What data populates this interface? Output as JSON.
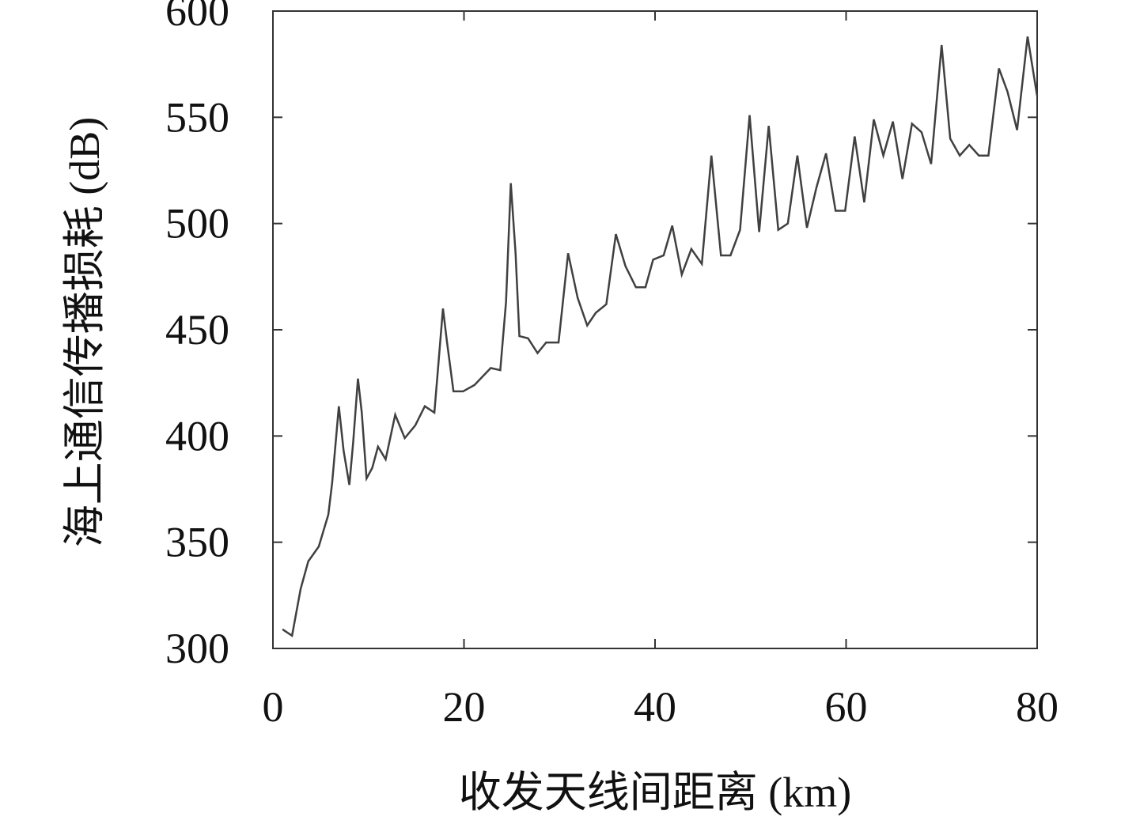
{
  "chart_data": {
    "type": "line",
    "xlabel": "收发天线间距离 (km)",
    "ylabel": "海上通信传播损耗 (dB)",
    "xlim": [
      0,
      80
    ],
    "xticks": [
      0,
      20,
      40,
      60,
      80
    ],
    "ylim": [
      300,
      600
    ],
    "yticks": [
      300,
      350,
      400,
      450,
      500,
      550,
      600
    ],
    "series": [
      {
        "color": "#404040",
        "x": [
          1,
          2,
          2.9,
          3.7,
          4.8,
          5.8,
          6.2,
          6.9,
          7.4,
          8,
          8.4,
          8.9,
          9.3,
          9.8,
          10.4,
          11,
          11.8,
          12.8,
          13.8,
          14.9,
          15.9,
          16.9,
          17.8,
          18.2,
          18.9,
          19.9,
          21.1,
          22.8,
          23.8,
          24.4,
          24.9,
          25.4,
          25.8,
          26.7,
          27.7,
          28.6,
          29.9,
          30.9,
          31.9,
          32.9,
          33.8,
          34.9,
          35.9,
          36.9,
          38,
          39,
          39.8,
          40.9,
          41.8,
          42.8,
          43.8,
          44.9,
          45.9,
          46.9,
          47.9,
          48.9,
          49.9,
          50.9,
          51.9,
          52.9,
          53.9,
          54.9,
          55.9,
          56.9,
          57.9,
          58.9,
          59.9,
          60.9,
          61.9,
          62.9,
          63.9,
          64.9,
          65.9,
          66.9,
          67.9,
          68.9,
          70,
          70.9,
          71.9,
          72.9,
          73.9,
          74.9,
          76,
          76.9,
          77.9,
          79,
          80
        ],
        "values": [
          309,
          306,
          328,
          341,
          348,
          363,
          378,
          414,
          393,
          377,
          397,
          427,
          411,
          380,
          385,
          395,
          389,
          410,
          399,
          405,
          414,
          411,
          460,
          445,
          421,
          421,
          424,
          432,
          431,
          463,
          519,
          486,
          447,
          446,
          439,
          444,
          444,
          486,
          465,
          452,
          458,
          462,
          495,
          480,
          470,
          470,
          483,
          485,
          499,
          476,
          488,
          481,
          532,
          485,
          485,
          497,
          551,
          496,
          546,
          497,
          500,
          532,
          498,
          517,
          533,
          506,
          506,
          541,
          510,
          549,
          532,
          548,
          521,
          547,
          543,
          528,
          584,
          540,
          532,
          537,
          532,
          532,
          573,
          562,
          544,
          588,
          560
        ]
      }
    ]
  }
}
